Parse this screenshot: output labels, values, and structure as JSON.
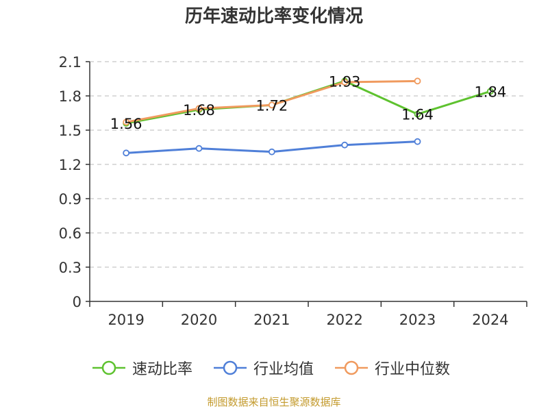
{
  "chart_data": {
    "type": "line",
    "title": "历年速动比率变化情况",
    "categories": [
      "2019",
      "2020",
      "2021",
      "2022",
      "2023",
      "2024"
    ],
    "ylim": [
      0,
      2.1
    ],
    "yticks": [
      "0",
      "0.3",
      "0.6",
      "0.9",
      "1.2",
      "1.5",
      "1.8",
      "2.1"
    ],
    "grid": true,
    "legend_position": "bottom",
    "series": [
      {
        "name": "速动比率",
        "color": "#5ec22f",
        "values": [
          1.56,
          1.68,
          1.72,
          1.93,
          1.64,
          1.84
        ],
        "labels": [
          "1.56",
          "1.68",
          "1.72",
          "1.93",
          "1.64",
          "1.84"
        ]
      },
      {
        "name": "行业均值",
        "color": "#4f7fd8",
        "values": [
          1.3,
          1.34,
          1.31,
          1.37,
          1.4,
          null
        ]
      },
      {
        "name": "行业中位数",
        "color": "#f09a5e",
        "values": [
          1.57,
          1.69,
          1.72,
          1.92,
          1.93,
          null
        ]
      }
    ]
  },
  "source_note": "制图数据来自恒生聚源数据库"
}
